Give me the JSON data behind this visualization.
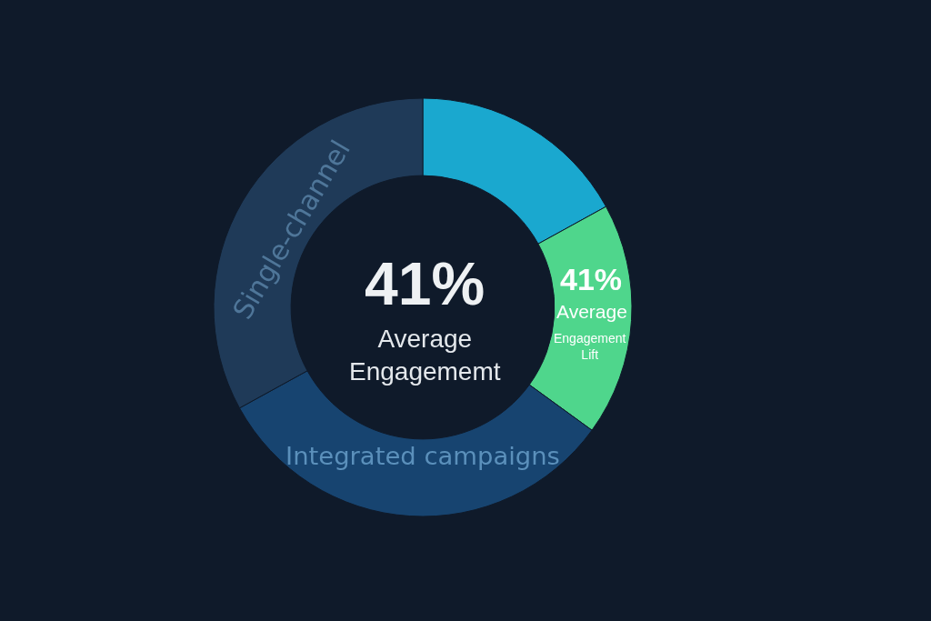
{
  "chart_data": {
    "type": "donut",
    "categories": [
      null,
      null,
      "Integrated campaigns",
      "Single-channel"
    ],
    "values": [
      17,
      18,
      32,
      33
    ],
    "colors": [
      "#1aa8cf",
      "#4fd68c",
      "#174470",
      "#1f3a58"
    ],
    "annotations": [
      "41%",
      "Average Engagememt",
      "41%",
      "Average",
      "Engagement Lift"
    ]
  }
}
